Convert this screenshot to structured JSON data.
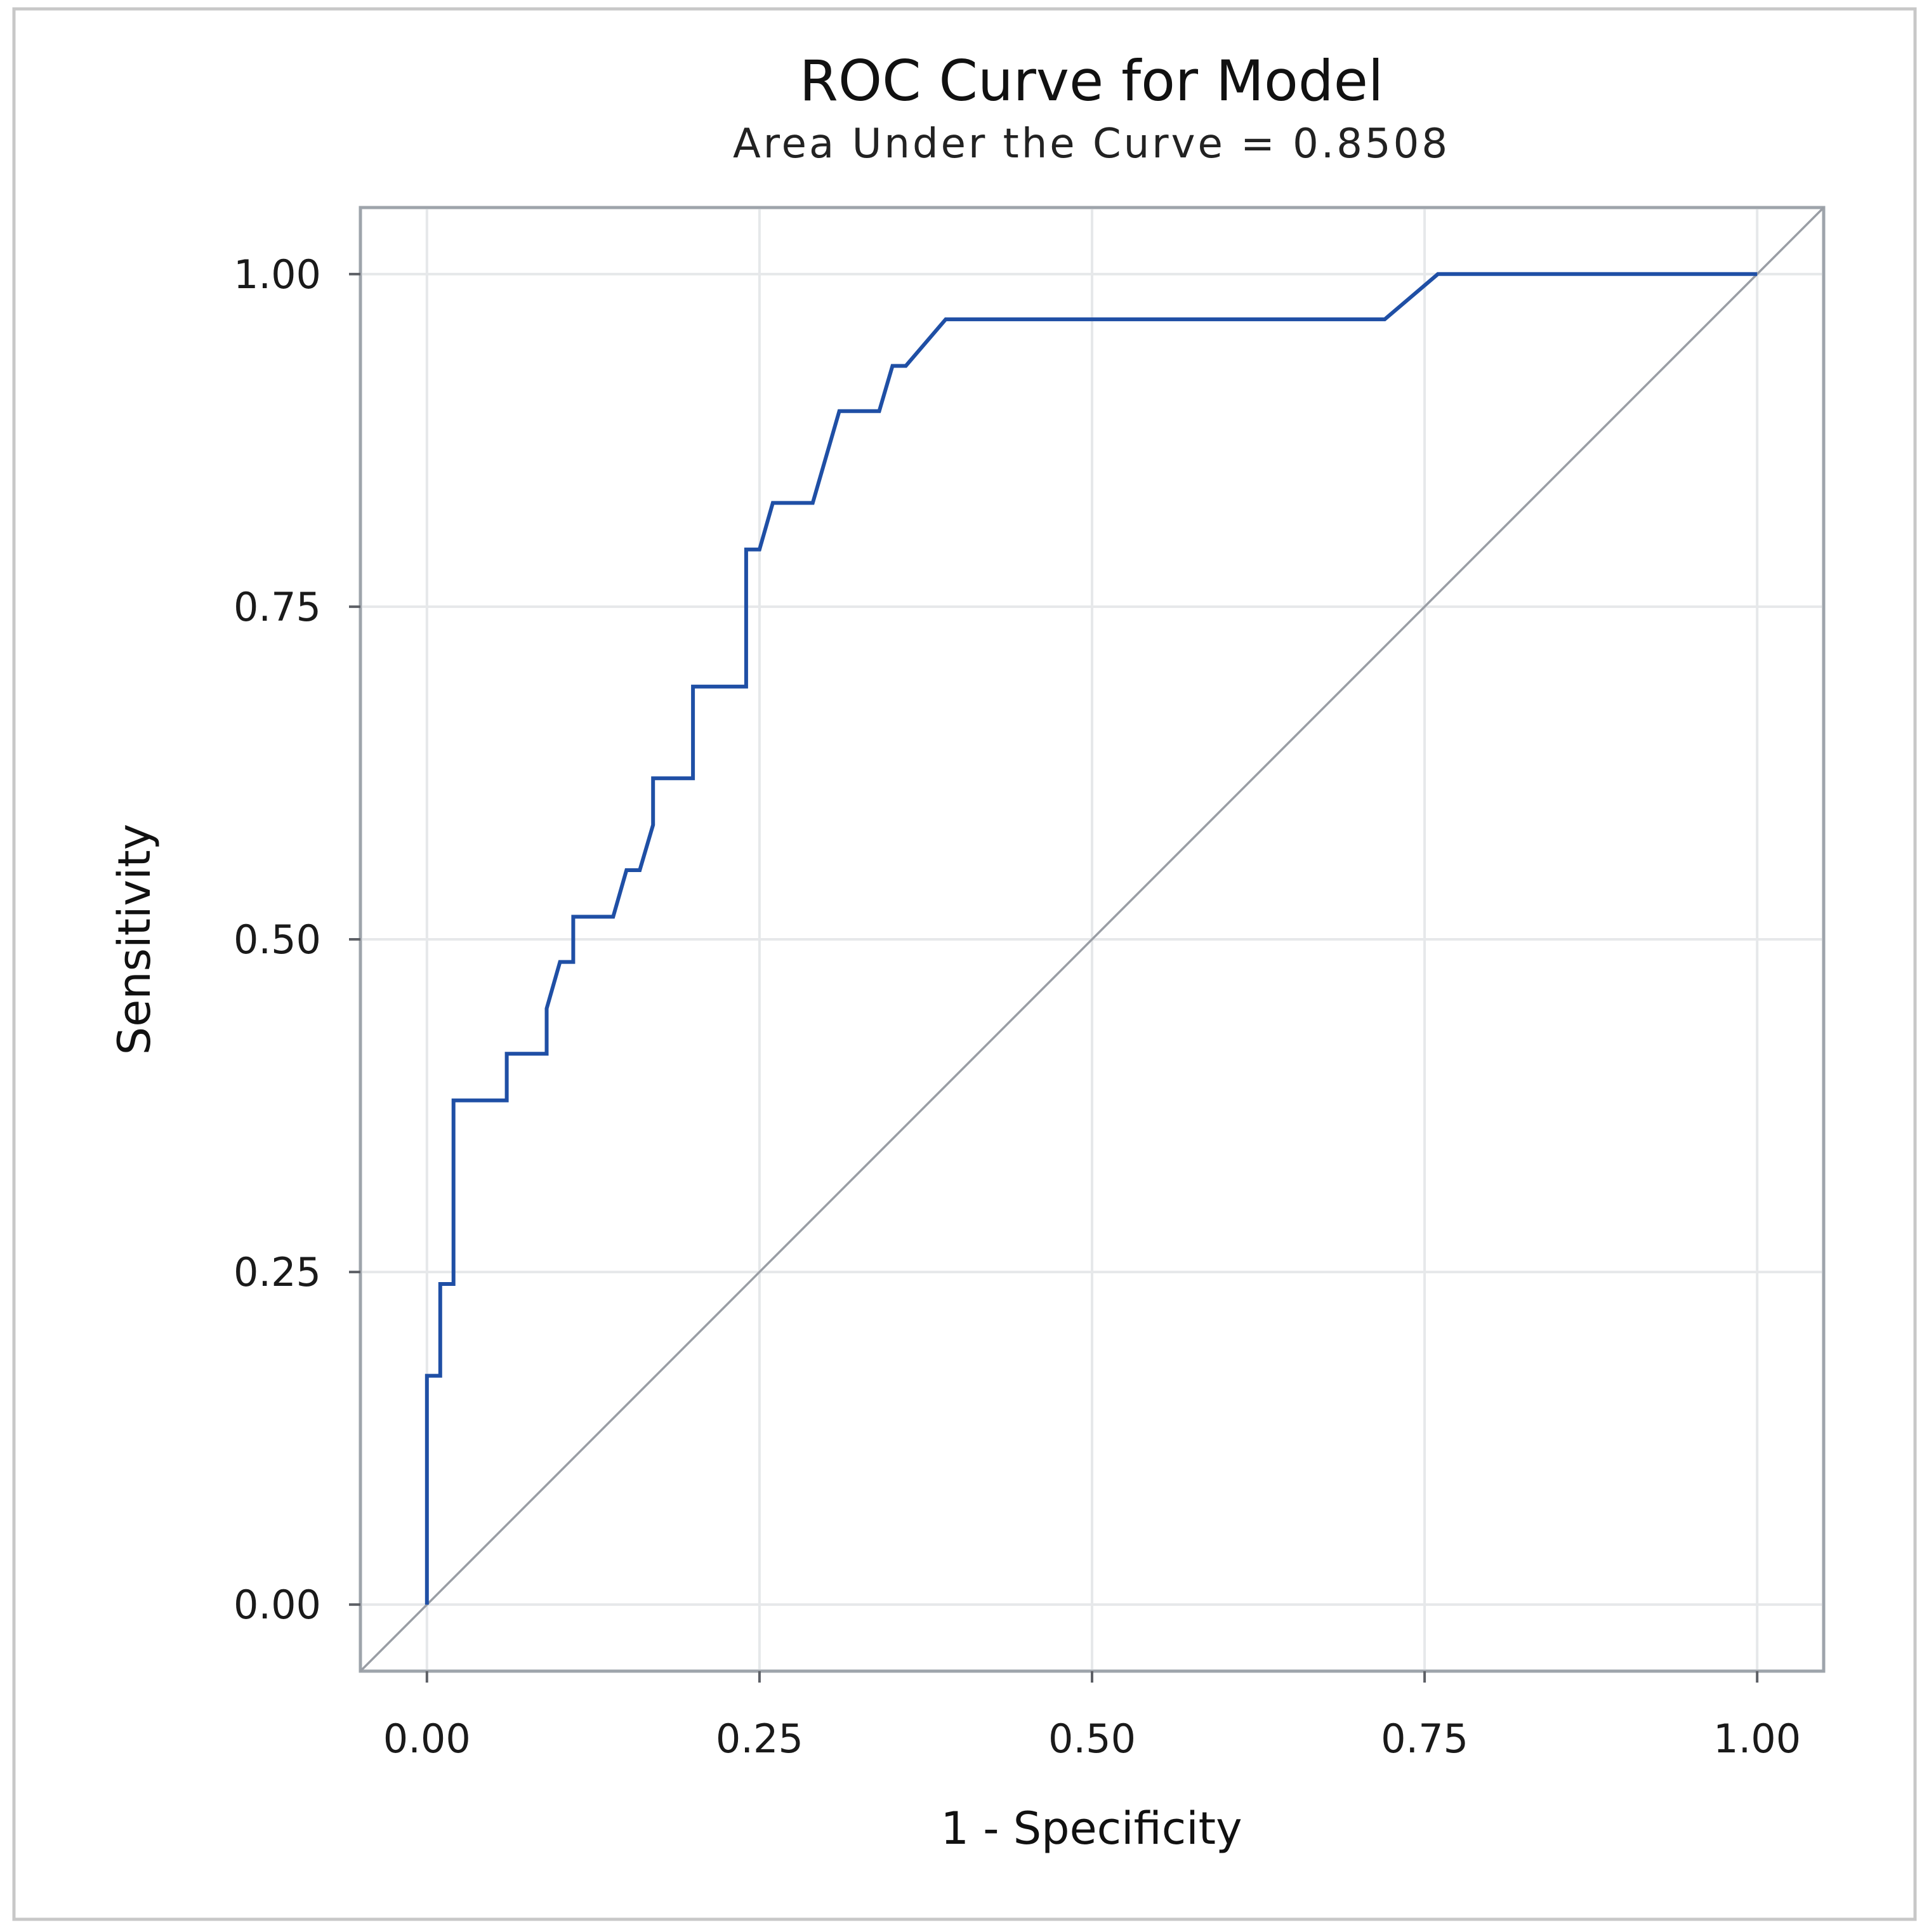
{
  "chart_data": {
    "type": "line",
    "title": "ROC Curve for Model",
    "subtitle": "Area Under the Curve = 0.8508",
    "xlabel": "1 - Specificity",
    "ylabel": "Sensitivity",
    "xlim": [
      -0.05,
      1.05
    ],
    "ylim": [
      -0.05,
      1.05
    ],
    "x_ticks": [
      0,
      0.25,
      0.5,
      0.75,
      1
    ],
    "y_ticks": [
      0,
      0.25,
      0.5,
      0.75,
      1
    ],
    "x_tick_labels": [
      "0.00",
      "0.25",
      "0.50",
      "0.75",
      "1.00"
    ],
    "y_tick_labels": [
      "0.00",
      "0.25",
      "0.50",
      "0.75",
      "1.00"
    ],
    "grid": true,
    "colors": {
      "roc": "#1f4fa5",
      "reference": "#9a9ea5",
      "grid": "#e6e8ea",
      "frame": "#9ea4ab"
    },
    "series": [
      {
        "name": "ROC",
        "points": [
          [
            0.0,
            0.0
          ],
          [
            0.0,
            0.172
          ],
          [
            0.01,
            0.172
          ],
          [
            0.01,
            0.241
          ],
          [
            0.02,
            0.241
          ],
          [
            0.02,
            0.379
          ],
          [
            0.06,
            0.379
          ],
          [
            0.06,
            0.414
          ],
          [
            0.09,
            0.414
          ],
          [
            0.09,
            0.448
          ],
          [
            0.1,
            0.483
          ],
          [
            0.11,
            0.483
          ],
          [
            0.11,
            0.517
          ],
          [
            0.14,
            0.517
          ],
          [
            0.15,
            0.552
          ],
          [
            0.16,
            0.552
          ],
          [
            0.17,
            0.586
          ],
          [
            0.17,
            0.621
          ],
          [
            0.2,
            0.621
          ],
          [
            0.2,
            0.69
          ],
          [
            0.24,
            0.69
          ],
          [
            0.24,
            0.793
          ],
          [
            0.25,
            0.793
          ],
          [
            0.26,
            0.828
          ],
          [
            0.29,
            0.828
          ],
          [
            0.31,
            0.897
          ],
          [
            0.34,
            0.897
          ],
          [
            0.35,
            0.931
          ],
          [
            0.36,
            0.931
          ],
          [
            0.39,
            0.966
          ],
          [
            0.72,
            0.966
          ],
          [
            0.76,
            1.0
          ],
          [
            1.0,
            1.0
          ]
        ]
      },
      {
        "name": "Reference",
        "points": [
          [
            -0.05,
            -0.05
          ],
          [
            1.05,
            1.05
          ]
        ]
      }
    ]
  }
}
